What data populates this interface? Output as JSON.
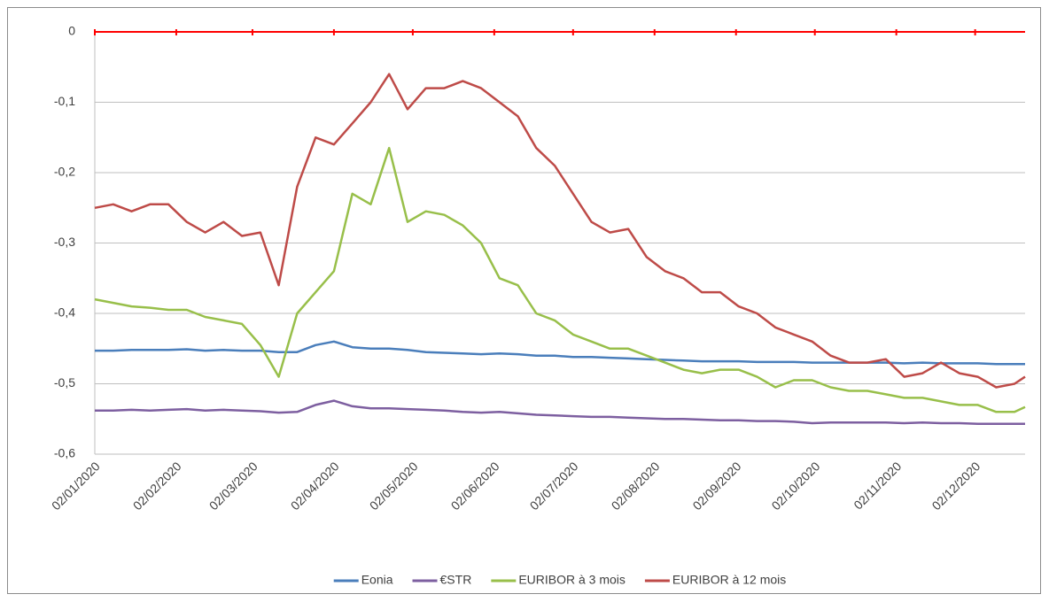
{
  "chart_data": {
    "type": "line",
    "x": [
      "02/01/2020",
      "09/01/2020",
      "16/01/2020",
      "23/01/2020",
      "30/01/2020",
      "06/02/2020",
      "13/02/2020",
      "20/02/2020",
      "27/02/2020",
      "05/03/2020",
      "12/03/2020",
      "19/03/2020",
      "26/03/2020",
      "02/04/2020",
      "09/04/2020",
      "16/04/2020",
      "23/04/2020",
      "30/04/2020",
      "07/05/2020",
      "14/05/2020",
      "21/05/2020",
      "28/05/2020",
      "04/06/2020",
      "11/06/2020",
      "18/06/2020",
      "25/06/2020",
      "02/07/2020",
      "09/07/2020",
      "16/07/2020",
      "23/07/2020",
      "30/07/2020",
      "06/08/2020",
      "13/08/2020",
      "20/08/2020",
      "27/08/2020",
      "03/09/2020",
      "10/09/2020",
      "17/09/2020",
      "24/09/2020",
      "01/10/2020",
      "08/10/2020",
      "15/10/2020",
      "22/10/2020",
      "29/10/2020",
      "05/11/2020",
      "12/11/2020",
      "19/11/2020",
      "26/11/2020",
      "03/12/2020",
      "10/12/2020",
      "17/12/2020",
      "21/12/2020"
    ],
    "series": [
      {
        "name": "Eonia",
        "color": "#4a7ebb",
        "values": [
          -0.453,
          -0.453,
          -0.452,
          -0.452,
          -0.452,
          -0.451,
          -0.453,
          -0.452,
          -0.453,
          -0.453,
          -0.455,
          -0.455,
          -0.445,
          -0.44,
          -0.448,
          -0.45,
          -0.45,
          -0.452,
          -0.455,
          -0.456,
          -0.457,
          -0.458,
          -0.457,
          -0.458,
          -0.46,
          -0.46,
          -0.462,
          -0.462,
          -0.463,
          -0.464,
          -0.465,
          -0.466,
          -0.467,
          -0.468,
          -0.468,
          -0.468,
          -0.469,
          -0.469,
          -0.469,
          -0.47,
          -0.47,
          -0.47,
          -0.47,
          -0.47,
          -0.471,
          -0.47,
          -0.471,
          -0.471,
          -0.471,
          -0.472,
          -0.472,
          -0.472
        ]
      },
      {
        "name": "€STR",
        "color": "#7d5fa0",
        "values": [
          -0.538,
          -0.538,
          -0.537,
          -0.538,
          -0.537,
          -0.536,
          -0.538,
          -0.537,
          -0.538,
          -0.539,
          -0.541,
          -0.54,
          -0.53,
          -0.524,
          -0.532,
          -0.535,
          -0.535,
          -0.536,
          -0.537,
          -0.538,
          -0.54,
          -0.541,
          -0.54,
          -0.542,
          -0.544,
          -0.545,
          -0.546,
          -0.547,
          -0.547,
          -0.548,
          -0.549,
          -0.55,
          -0.55,
          -0.551,
          -0.552,
          -0.552,
          -0.553,
          -0.553,
          -0.554,
          -0.556,
          -0.555,
          -0.555,
          -0.555,
          -0.555,
          -0.556,
          -0.555,
          -0.556,
          -0.556,
          -0.557,
          -0.557,
          -0.557,
          -0.557
        ]
      },
      {
        "name": "EURIBOR à 3 mois",
        "color": "#98bf4a",
        "values": [
          -0.38,
          -0.385,
          -0.39,
          -0.392,
          -0.395,
          -0.395,
          -0.405,
          -0.41,
          -0.415,
          -0.445,
          -0.49,
          -0.4,
          -0.37,
          -0.34,
          -0.23,
          -0.245,
          -0.165,
          -0.27,
          -0.255,
          -0.26,
          -0.275,
          -0.3,
          -0.35,
          -0.36,
          -0.4,
          -0.41,
          -0.43,
          -0.44,
          -0.45,
          -0.45,
          -0.46,
          -0.47,
          -0.48,
          -0.485,
          -0.48,
          -0.48,
          -0.49,
          -0.505,
          -0.495,
          -0.495,
          -0.505,
          -0.51,
          -0.51,
          -0.515,
          -0.52,
          -0.52,
          -0.525,
          -0.53,
          -0.53,
          -0.54,
          -0.54,
          -0.533
        ]
      },
      {
        "name": "EURIBOR à 12 mois",
        "color": "#be4b48",
        "values": [
          -0.25,
          -0.245,
          -0.255,
          -0.245,
          -0.245,
          -0.27,
          -0.285,
          -0.27,
          -0.29,
          -0.285,
          -0.36,
          -0.22,
          -0.15,
          -0.16,
          -0.13,
          -0.1,
          -0.06,
          -0.11,
          -0.08,
          -0.08,
          -0.07,
          -0.08,
          -0.1,
          -0.12,
          -0.165,
          -0.19,
          -0.23,
          -0.27,
          -0.285,
          -0.28,
          -0.32,
          -0.34,
          -0.35,
          -0.37,
          -0.37,
          -0.39,
          -0.4,
          -0.42,
          -0.43,
          -0.44,
          -0.46,
          -0.47,
          -0.47,
          -0.465,
          -0.49,
          -0.485,
          -0.47,
          -0.485,
          -0.49,
          -0.505,
          -0.5,
          -0.49
        ]
      }
    ],
    "xlim": [
      "02/01/2020",
      "21/12/2020"
    ],
    "xticks": [
      "02/01/2020",
      "02/02/2020",
      "02/03/2020",
      "02/04/2020",
      "02/05/2020",
      "02/06/2020",
      "02/07/2020",
      "02/08/2020",
      "02/09/2020",
      "02/10/2020",
      "02/11/2020",
      "02/12/2020"
    ],
    "ylim": [
      -0.6,
      0
    ],
    "yticks": [
      0,
      {
        "value": -0.1,
        "label": "-0,1"
      },
      {
        "value": -0.2,
        "label": "-0,2"
      },
      {
        "value": -0.3,
        "label": "-0,3"
      },
      {
        "value": -0.4,
        "label": "-0,4"
      },
      {
        "value": -0.5,
        "label": "-0,5"
      },
      {
        "value": -0.6,
        "label": "-0,6"
      }
    ],
    "grid": true,
    "x_axis_color": "#ff0000",
    "legend": "bottom"
  }
}
